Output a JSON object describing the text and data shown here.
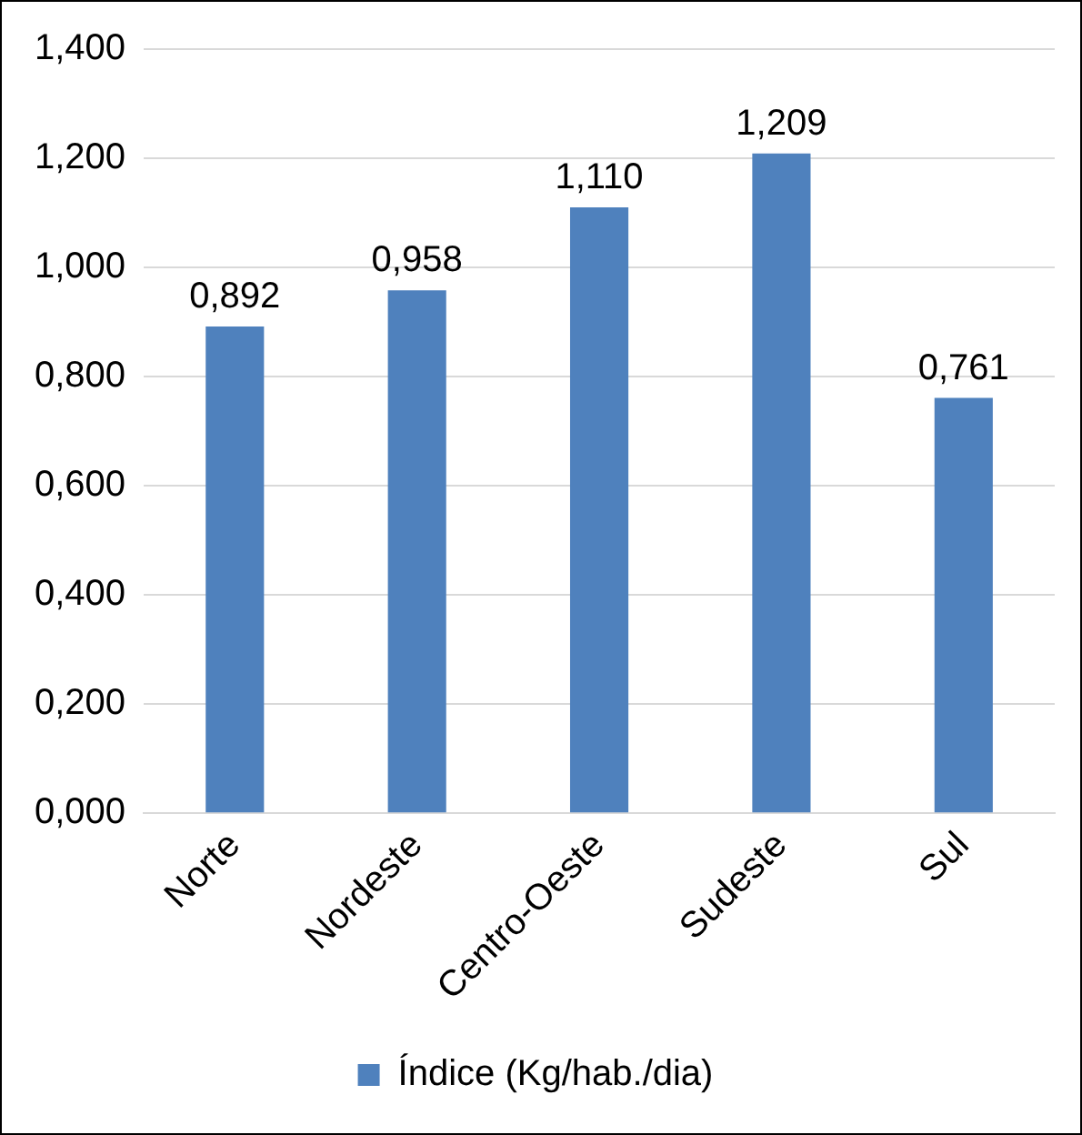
{
  "chart_data": {
    "type": "bar",
    "categories": [
      "Norte",
      "Nordeste",
      "Centro-Oeste",
      "Sudeste",
      "Sul"
    ],
    "series": [
      {
        "name": "Índice (Kg/hab./dia)",
        "color": "#4f81bd",
        "values": [
          0.892,
          0.958,
          1.11,
          1.209,
          0.761
        ],
        "value_labels": [
          "0,892",
          "0,958",
          "1,110",
          "1,209",
          "0,761"
        ]
      }
    ],
    "ylim": [
      0,
      1.4
    ],
    "yticks": [
      {
        "value": 0,
        "label": "0,000"
      },
      {
        "value": 0.2,
        "label": "0,200"
      },
      {
        "value": 0.4,
        "label": "0,400"
      },
      {
        "value": 0.6,
        "label": "0,600"
      },
      {
        "value": 0.8,
        "label": "0,800"
      },
      {
        "value": 1.0,
        "label": "1,000"
      },
      {
        "value": 1.2,
        "label": "1,200"
      },
      {
        "value": 1.4,
        "label": "1,400"
      }
    ],
    "grid": "y",
    "legend": "bottom"
  }
}
